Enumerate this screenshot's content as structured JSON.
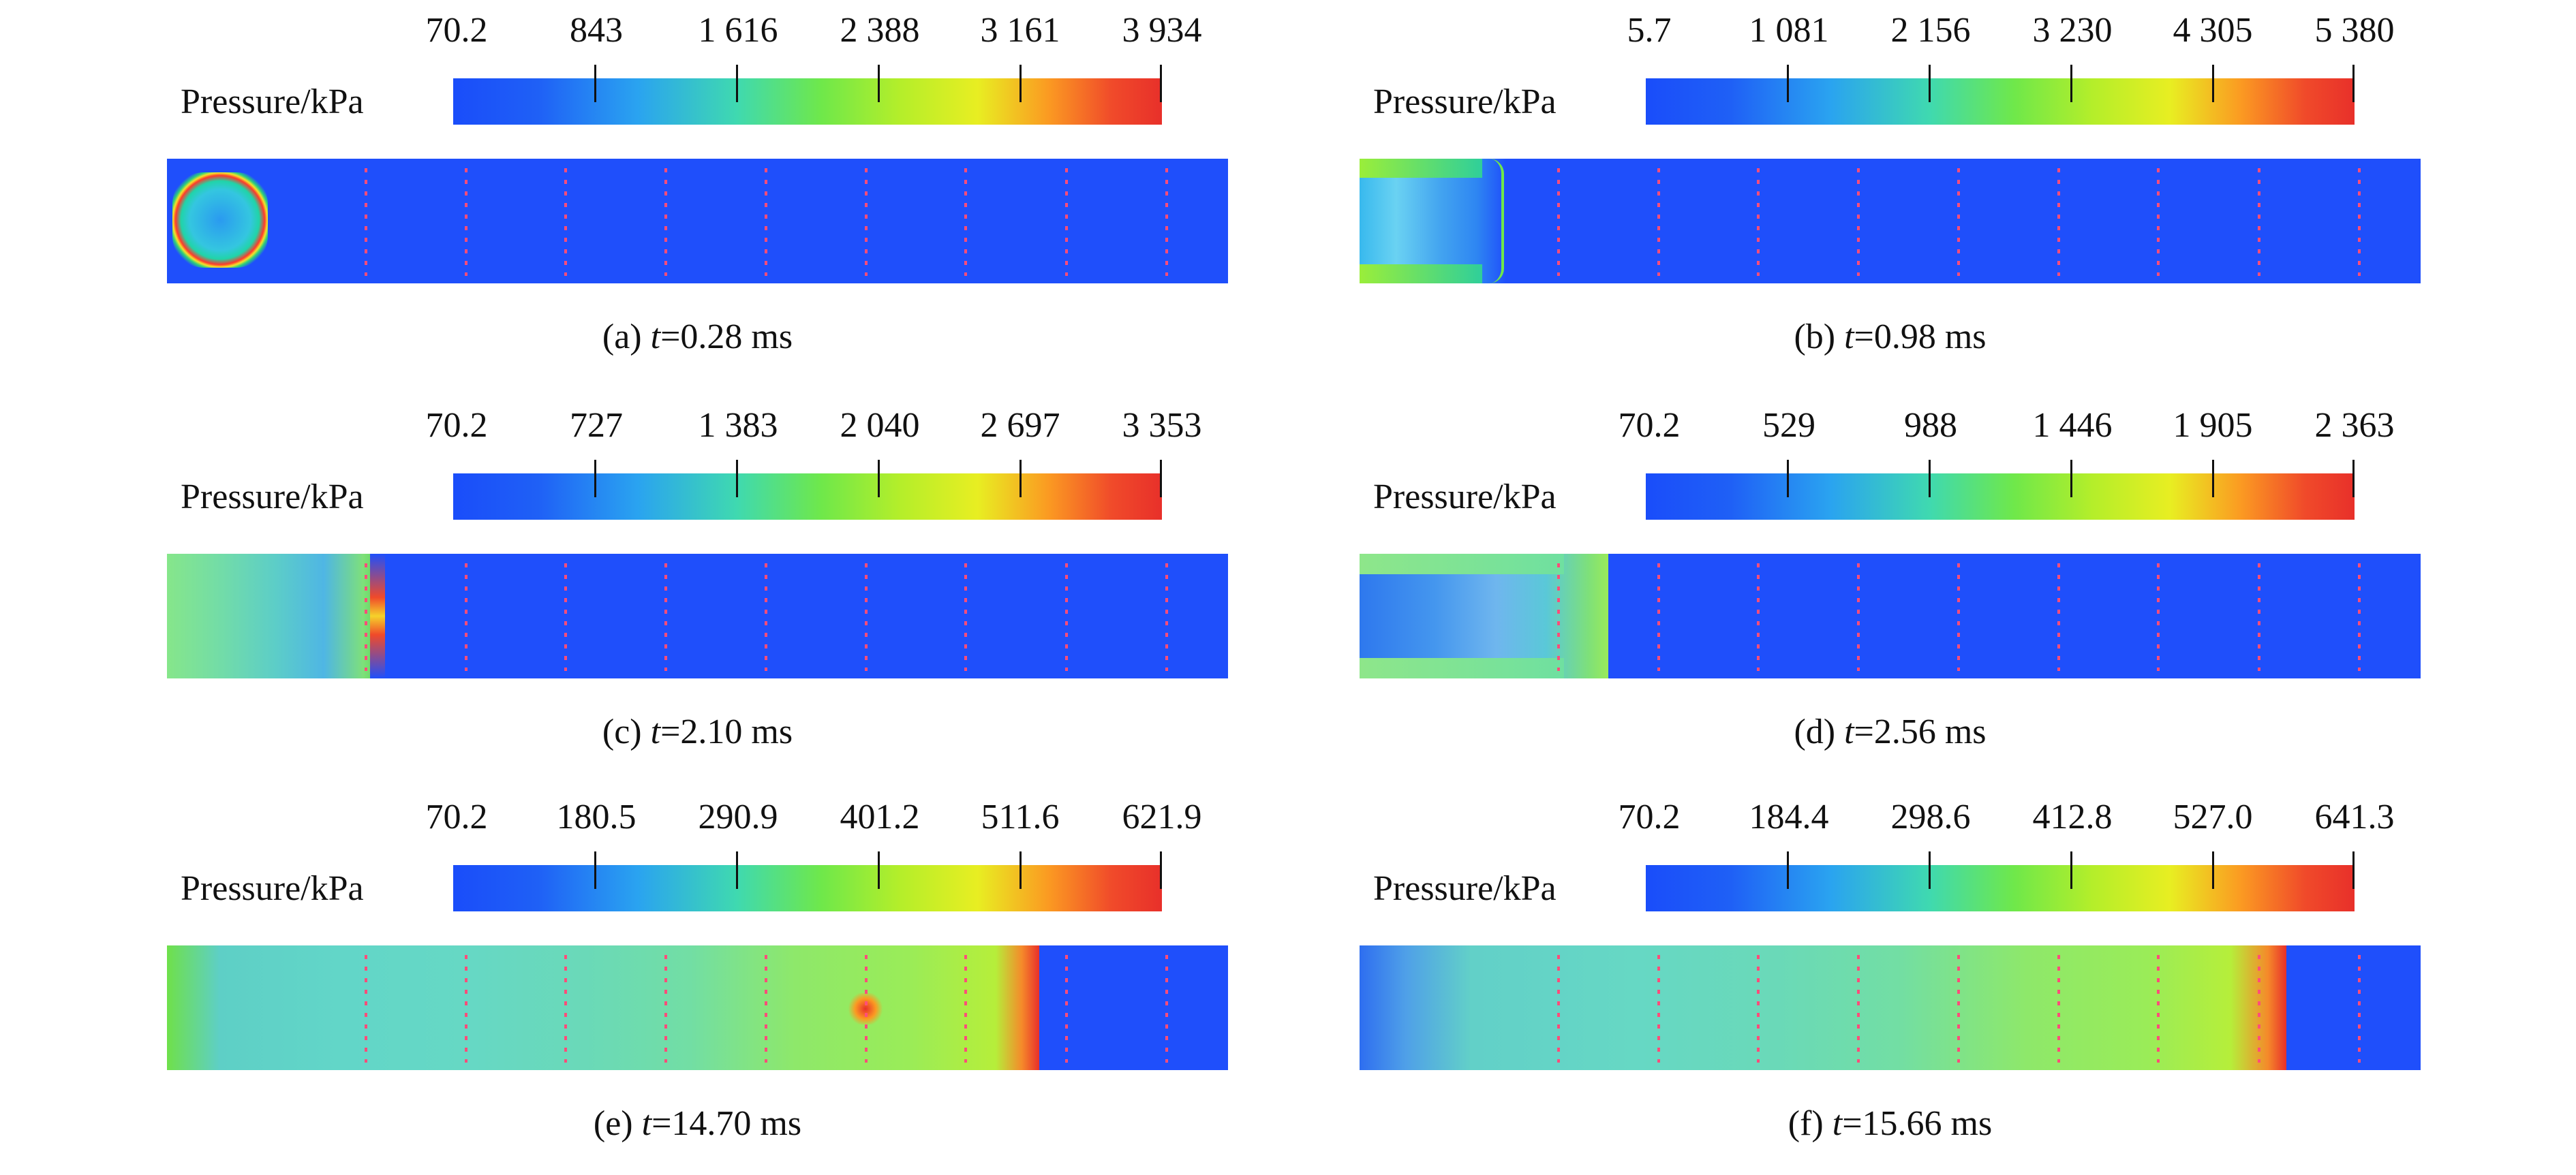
{
  "panels": [
    {
      "label": "(a)",
      "t_var": "t",
      "t_val": "=0.28 ms",
      "colorbar_label": "Pressure/kPa",
      "ticks": [
        "70.2",
        "843",
        "1 616",
        "2 388",
        "3 161",
        "3 934"
      ],
      "units": "kPa"
    },
    {
      "label": "(b)",
      "t_var": "t",
      "t_val": "=0.98 ms",
      "colorbar_label": "Pressure/kPa",
      "ticks": [
        "5.7",
        "1 081",
        "2 156",
        "3 230",
        "4 305",
        "5 380"
      ],
      "units": "kPa"
    },
    {
      "label": "(c)",
      "t_var": "t",
      "t_val": "=2.10 ms",
      "colorbar_label": "Pressure/kPa",
      "ticks": [
        "70.2",
        "727",
        "1 383",
        "2 040",
        "2 697",
        "3 353"
      ],
      "units": "kPa"
    },
    {
      "label": "(d)",
      "t_var": "t",
      "t_val": "=2.56 ms",
      "colorbar_label": "Pressure/kPa",
      "ticks": [
        "70.2",
        "529",
        "988",
        "1 446",
        "1 905",
        "2 363"
      ],
      "units": "kPa"
    },
    {
      "label": "(e)",
      "t_var": "t",
      "t_val": "=14.70 ms",
      "colorbar_label": "Pressure/kPa",
      "ticks": [
        "70.2",
        "180.5",
        "290.9",
        "401.2",
        "511.6",
        "621.9"
      ],
      "units": "kPa"
    },
    {
      "label": "(f)",
      "t_var": "t",
      "t_val": "=15.66 ms",
      "colorbar_label": "Pressure/kPa",
      "ticks": [
        "70.2",
        "184.4",
        "298.6",
        "412.8",
        "527.0",
        "641.3"
      ],
      "units": "kPa"
    }
  ],
  "colors": {
    "low": "#1f4ffb",
    "mid": "#6fe84a",
    "high": "#e8302a",
    "marker": "#ff4d7a"
  }
}
